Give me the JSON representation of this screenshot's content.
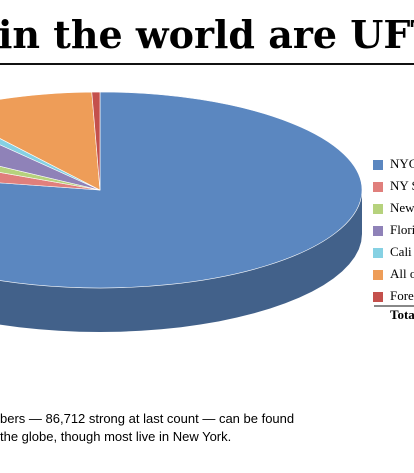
{
  "chart_data": {
    "type": "pie",
    "title": "in the world are UFT",
    "categories": [
      "NYC",
      "NY S",
      "New",
      "Flori",
      "Cali",
      "All o",
      "Fore"
    ],
    "values": [
      78,
      4,
      2,
      5,
      1,
      9.5,
      0.5
    ],
    "colors": [
      "#5b87c0",
      "#e07f7c",
      "#b6d27d",
      "#8f82b8",
      "#86d1e3",
      "#ee9d58",
      "#c4504c"
    ],
    "total_label": "Tota",
    "caption": [
      "bers — 86,712 strong at last count — can be found",
      "the globe, though most live in New York."
    ]
  }
}
